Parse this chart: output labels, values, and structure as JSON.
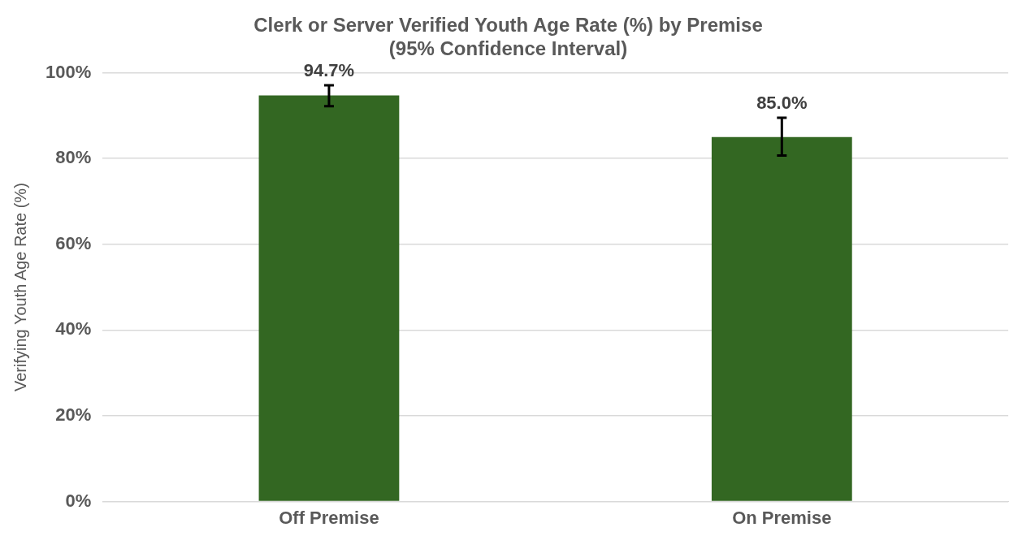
{
  "chart_data": {
    "type": "bar",
    "title": "Clerk or Server Verified Youth Age Rate (%) by Premise",
    "subtitle": "(95% Confidence Interval)",
    "ylabel": "Verifying Youth Age Rate (%)",
    "categories": [
      "Off Premise",
      "On Premise"
    ],
    "values": [
      94.7,
      85.0
    ],
    "color": "#336722",
    "errors": [
      [
        92.2,
        97.1
      ],
      [
        80.7,
        89.5
      ]
    ],
    "value_labels": [
      "94.7%",
      "85.0%"
    ],
    "ylim": [
      0,
      100
    ],
    "yticks": [
      {
        "value": 0,
        "label": "0%"
      },
      {
        "value": 20,
        "label": "20%"
      },
      {
        "value": 40,
        "label": "40%"
      },
      {
        "value": 60,
        "label": "60%"
      },
      {
        "value": 80,
        "label": "80%"
      },
      {
        "value": 100,
        "label": "100%"
      }
    ],
    "grid": "y",
    "legend": false
  }
}
